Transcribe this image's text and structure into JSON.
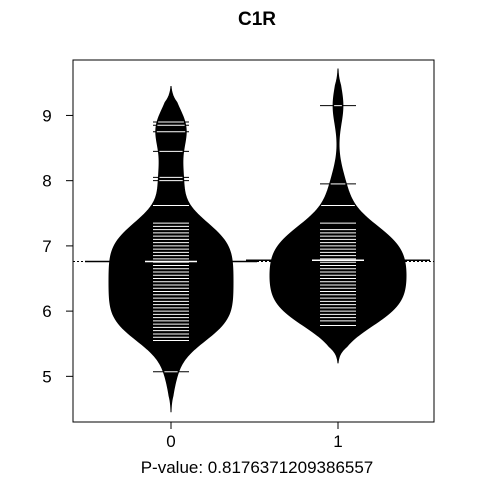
{
  "chart_data": {
    "type": "beanplot",
    "title": "C1R",
    "xlabel": "P-value: 0.8176371209386557",
    "ylabel": "",
    "categories": [
      "0",
      "1"
    ],
    "ylim": [
      4.3,
      9.85
    ],
    "yticks": [
      5,
      6,
      7,
      8,
      9
    ],
    "overall_mean": 6.76,
    "grid": false,
    "legend": "none",
    "colors": {
      "bean": "#000000",
      "lines": "#ffffff",
      "background": "#ffffff"
    },
    "series": [
      {
        "category": "0",
        "mean": 6.76,
        "density_range": [
          4.45,
          9.45
        ],
        "density_peak": 6.78,
        "observations": [
          5.07,
          5.55,
          5.6,
          5.65,
          5.7,
          5.75,
          5.8,
          5.85,
          5.9,
          5.95,
          6.0,
          6.05,
          6.1,
          6.15,
          6.2,
          6.25,
          6.3,
          6.35,
          6.4,
          6.45,
          6.5,
          6.55,
          6.6,
          6.65,
          6.7,
          6.75,
          6.8,
          6.85,
          6.9,
          6.95,
          7.0,
          7.05,
          7.1,
          7.15,
          7.2,
          7.25,
          7.3,
          7.35,
          7.62,
          8.0,
          8.05,
          8.45,
          8.75,
          8.85,
          8.9
        ]
      },
      {
        "category": "1",
        "mean": 6.78,
        "density_range": [
          5.2,
          9.72
        ],
        "density_peak": 6.68,
        "observations": [
          5.78,
          5.85,
          5.9,
          5.95,
          6.0,
          6.05,
          6.1,
          6.15,
          6.2,
          6.25,
          6.3,
          6.35,
          6.4,
          6.45,
          6.5,
          6.55,
          6.6,
          6.65,
          6.7,
          6.75,
          6.8,
          6.85,
          6.9,
          6.95,
          7.0,
          7.05,
          7.1,
          7.15,
          7.2,
          7.25,
          7.35,
          7.62,
          7.95,
          9.15
        ]
      }
    ]
  }
}
